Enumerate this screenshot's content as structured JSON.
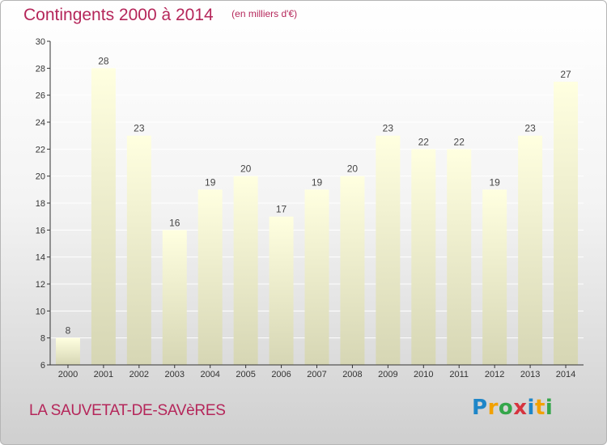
{
  "header": {
    "title": "Contingents 2000 à 2014",
    "unit": "(en milliers d'€)"
  },
  "footer": {
    "commune": "LA SAUVETAT-DE-SAVèRES",
    "logo_text": "Proxiti"
  },
  "colors": {
    "title": "#b5265a",
    "bar_top": "#ffffe0",
    "bar_bottom": "#d6d6b4",
    "axis": "#333333",
    "grid": "#ffffff"
  },
  "chart_data": {
    "type": "bar",
    "title": "Contingents 2000 à 2014",
    "subtitle": "(en milliers d'€)",
    "xlabel": "",
    "ylabel": "",
    "categories": [
      "2000",
      "2001",
      "2002",
      "2003",
      "2004",
      "2005",
      "2006",
      "2007",
      "2008",
      "2009",
      "2010",
      "2011",
      "2012",
      "2013",
      "2014"
    ],
    "values": [
      8,
      28,
      23,
      16,
      19,
      20,
      17,
      19,
      20,
      23,
      22,
      22,
      19,
      23,
      27
    ],
    "ylim": [
      6,
      30
    ],
    "yticks": [
      6,
      8,
      10,
      12,
      14,
      16,
      18,
      20,
      22,
      24,
      26,
      28,
      30
    ],
    "grid": true,
    "data_labels": true
  }
}
